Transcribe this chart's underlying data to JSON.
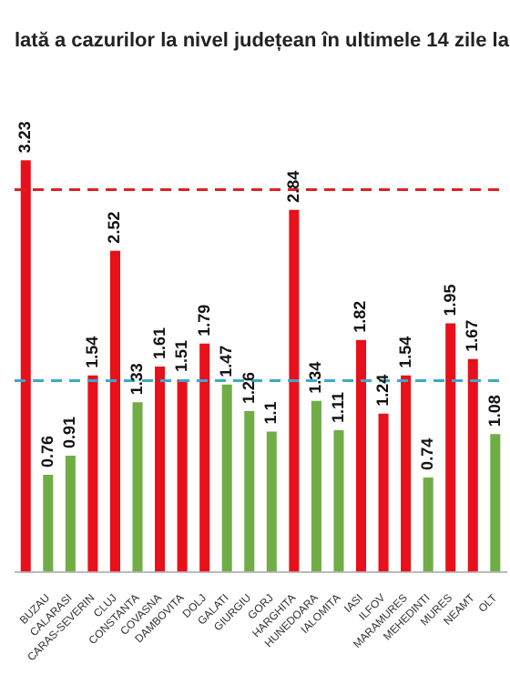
{
  "chart_data": {
    "type": "bar",
    "title": "lată a cazurilor la nivel județean în ultimele 14 zile la",
    "categories": [
      null,
      "BUZAU",
      "CALARASI",
      "CARAS-SEVERIN",
      "CLUJ",
      "CONSTANTA",
      "COVASNA",
      "DAMBOVITA",
      "DOLJ",
      "GALATI",
      "GIURGIU",
      "GORJ",
      "HARGHITA",
      "HUNEDOARA",
      "IALOMITA",
      "IASI",
      "ILFOV",
      "MARAMURES",
      "MEHEDINTI",
      "MURES",
      "NEAMT",
      "OLT"
    ],
    "values": [
      3.23,
      0.76,
      0.91,
      1.54,
      2.52,
      1.33,
      1.61,
      1.51,
      1.79,
      1.47,
      1.26,
      1.1,
      2.84,
      1.34,
      1.11,
      1.82,
      1.24,
      1.54,
      0.74,
      1.95,
      1.67,
      1.08
    ],
    "colors": [
      "#e8101a",
      "#70ad47",
      "#70ad47",
      "#e8101a",
      "#e8101a",
      "#70ad47",
      "#e8101a",
      "#e8101a",
      "#e8101a",
      "#70ad47",
      "#70ad47",
      "#70ad47",
      "#e8101a",
      "#70ad47",
      "#70ad47",
      "#e8101a",
      "#e8101a",
      "#e8101a",
      "#70ad47",
      "#e8101a",
      "#e8101a",
      "#70ad47"
    ],
    "data_labels": true,
    "tick_labels": "x",
    "grid": false,
    "legend": false,
    "ref_lines": [
      {
        "axis": "y",
        "value": 3,
        "color": "#e02020",
        "line_style": "dashed"
      },
      {
        "axis": "y",
        "value": 1.5,
        "color": "#3ba8cc",
        "line_style": "dashed"
      }
    ]
  }
}
